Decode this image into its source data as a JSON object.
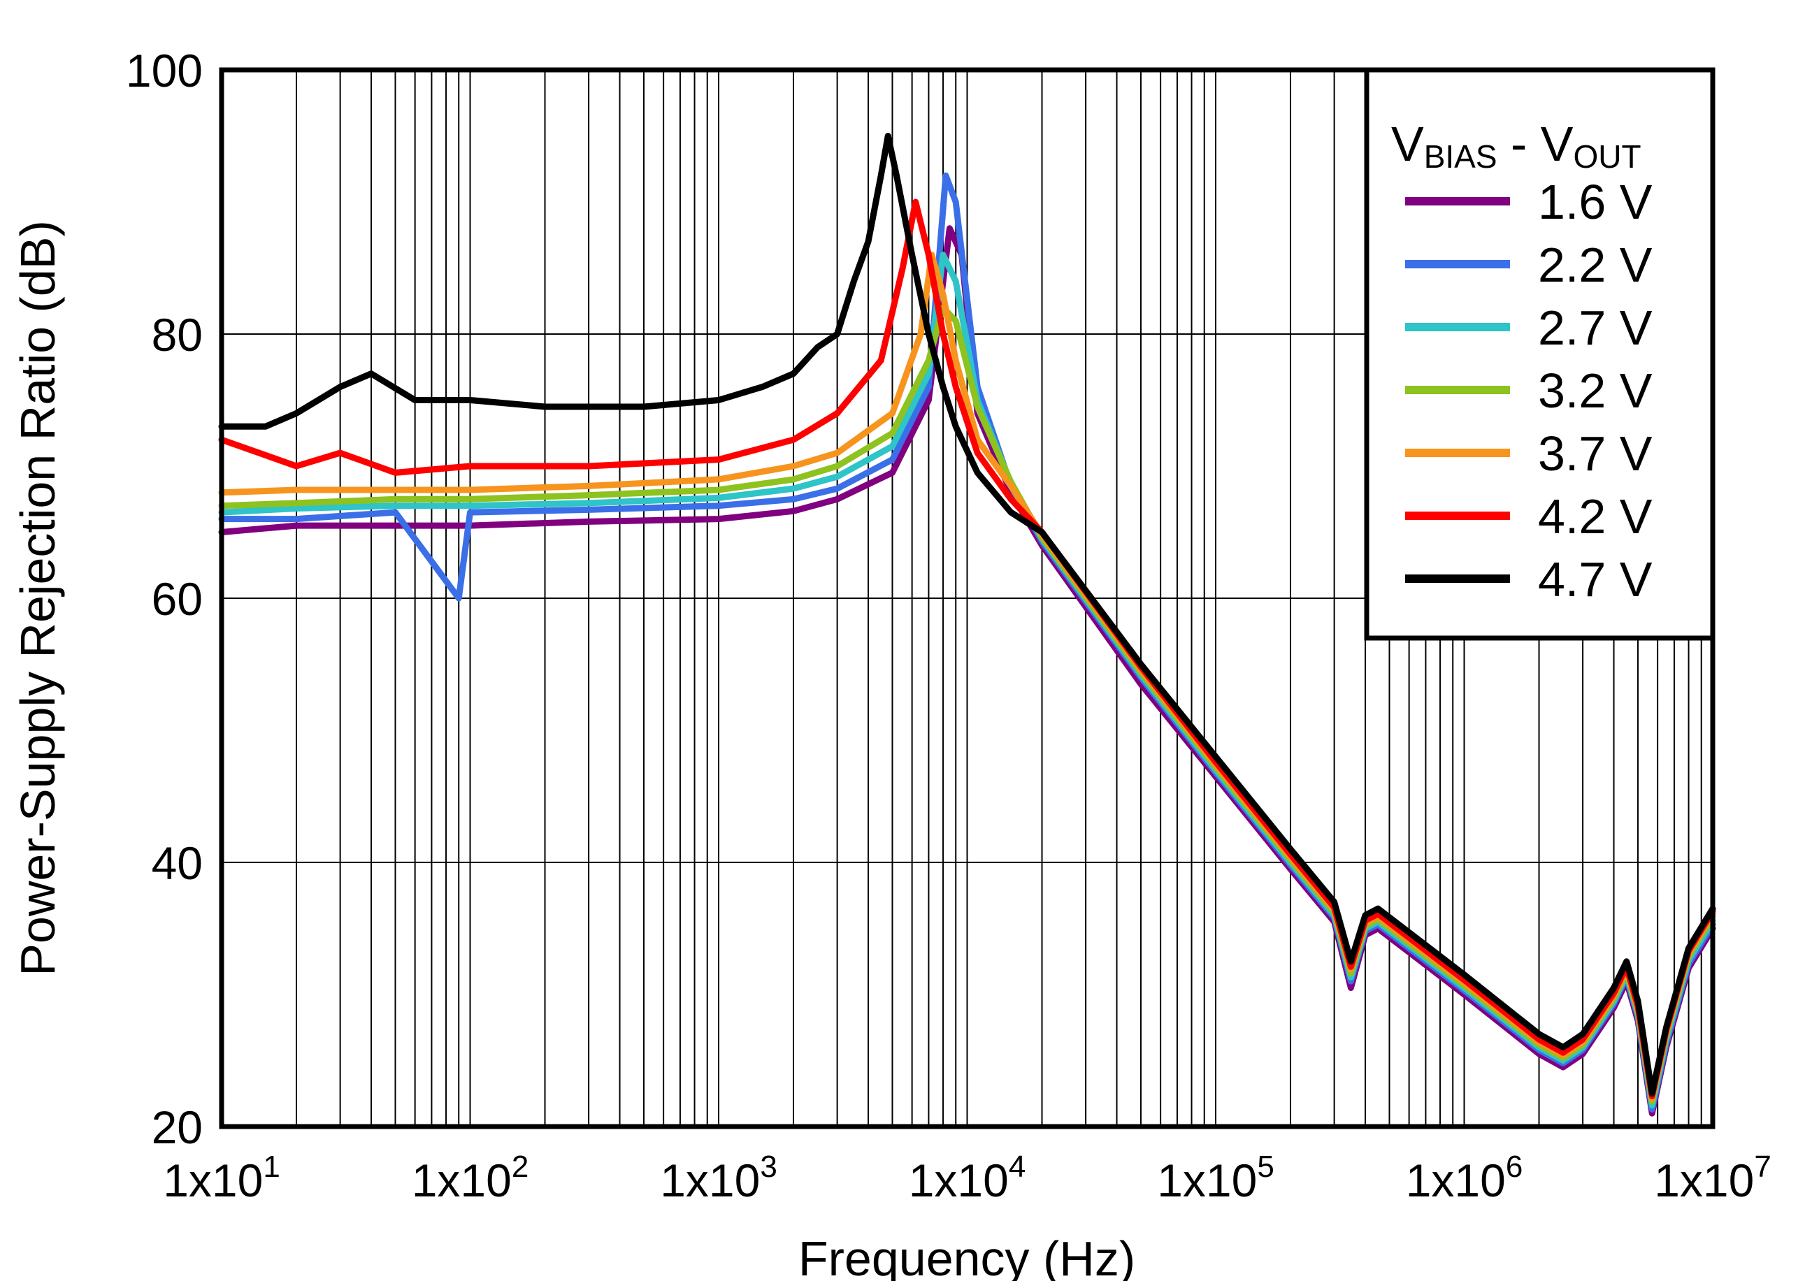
{
  "chart_data": {
    "type": "line",
    "title": "",
    "xlabel": "Frequency (Hz)",
    "ylabel": "Power-Supply Rejection Ratio (dB)",
    "xscale": "log",
    "xlim": [
      10,
      10000000
    ],
    "ylim": [
      20,
      100
    ],
    "grid": true,
    "x_tick_values": [
      10,
      100,
      1000,
      10000,
      100000,
      1000000,
      10000000
    ],
    "x_tick_labels": [
      {
        "mantissa": "1x10",
        "exp": "1"
      },
      {
        "mantissa": "1x10",
        "exp": "2"
      },
      {
        "mantissa": "1x10",
        "exp": "3"
      },
      {
        "mantissa": "1x10",
        "exp": "4"
      },
      {
        "mantissa": "1x10",
        "exp": "5"
      },
      {
        "mantissa": "1x10",
        "exp": "6"
      },
      {
        "mantissa": "1x10",
        "exp": "7"
      }
    ],
    "y_ticks": [
      20,
      40,
      60,
      80,
      100
    ],
    "legend": {
      "position": "top-right",
      "title": {
        "v1": "V",
        "sub1": "BIAS",
        "sep": " - ",
        "v2": "V",
        "sub2": "OUT"
      }
    },
    "series": [
      {
        "name": "1.6 V",
        "color": "#800080",
        "x": [
          10,
          20,
          50,
          100,
          300,
          1000,
          2000,
          3000,
          5000,
          7000,
          8500,
          9500,
          11000,
          15000,
          20000,
          50000,
          100000,
          200000,
          300000,
          350000,
          400000,
          450000,
          1000000,
          2000000,
          2500000,
          3000000,
          4000000,
          4500000,
          5000000,
          5700000,
          6500000,
          8000000,
          10000000
        ],
        "y": [
          65,
          65.5,
          65.5,
          65.5,
          65.8,
          66,
          66.6,
          67.5,
          69.5,
          75,
          88,
          86,
          74,
          68,
          64,
          53.5,
          46.5,
          39.5,
          35.5,
          30.5,
          34.5,
          35,
          30,
          25.5,
          24.5,
          25.5,
          29,
          31,
          28,
          21,
          26,
          32,
          35
        ]
      },
      {
        "name": "2.2 V",
        "color": "#3A6FE8",
        "x": [
          10,
          20,
          50,
          90,
          100,
          300,
          1000,
          2000,
          3000,
          5000,
          7000,
          8200,
          9000,
          11000,
          15000,
          20000,
          50000,
          100000,
          200000,
          300000,
          350000,
          400000,
          450000,
          1000000,
          2000000,
          2500000,
          3000000,
          4000000,
          4500000,
          5000000,
          5700000,
          6500000,
          8000000,
          10000000
        ],
        "y": [
          66,
          66,
          66.5,
          60,
          66.5,
          66.7,
          67,
          67.5,
          68.3,
          70.5,
          76,
          92,
          90,
          76,
          68.5,
          64.3,
          54,
          46.8,
          39.8,
          35.8,
          31,
          34.8,
          35.3,
          30.3,
          25.8,
          24.8,
          25.8,
          29.3,
          31.3,
          28.3,
          21.3,
          26.3,
          32.3,
          35.3
        ]
      },
      {
        "name": "2.7 V",
        "color": "#2EC4C8",
        "x": [
          10,
          20,
          50,
          100,
          300,
          1000,
          2000,
          3000,
          5000,
          7000,
          8000,
          9000,
          11000,
          15000,
          20000,
          50000,
          100000,
          200000,
          300000,
          350000,
          400000,
          450000,
          1000000,
          2000000,
          2500000,
          3000000,
          4000000,
          4500000,
          5000000,
          5700000,
          6500000,
          8000000,
          10000000
        ],
        "y": [
          66.5,
          66.8,
          67,
          67,
          67.2,
          67.6,
          68.3,
          69.2,
          71.5,
          77,
          86,
          84,
          75,
          68.7,
          64.5,
          54.2,
          47,
          40,
          36,
          31.3,
          35,
          35.5,
          30.5,
          26,
          25,
          26,
          29.5,
          31.5,
          28.5,
          21.6,
          26.6,
          32.6,
          35.6
        ]
      },
      {
        "name": "3.2 V",
        "color": "#8DC21F",
        "x": [
          10,
          20,
          50,
          100,
          300,
          1000,
          2000,
          3000,
          5000,
          7000,
          8000,
          9000,
          11000,
          15000,
          20000,
          50000,
          100000,
          200000,
          300000,
          350000,
          400000,
          450000,
          1000000,
          2000000,
          2500000,
          3000000,
          4000000,
          4500000,
          5000000,
          5700000,
          6500000,
          8000000,
          10000000
        ],
        "y": [
          67,
          67.2,
          67.5,
          67.5,
          67.8,
          68.2,
          69,
          70,
          72.5,
          78,
          82,
          81,
          74.5,
          68.8,
          64.6,
          54.4,
          47.2,
          40.2,
          36.2,
          31.6,
          35.2,
          35.7,
          30.7,
          26.2,
          25.2,
          26.2,
          29.7,
          31.7,
          28.7,
          21.9,
          26.9,
          32.9,
          35.9
        ]
      },
      {
        "name": "3.7 V",
        "color": "#F7941D",
        "x": [
          10,
          20,
          50,
          100,
          300,
          1000,
          2000,
          3000,
          5000,
          6500,
          7200,
          8000,
          9000,
          11000,
          15000,
          20000,
          50000,
          100000,
          200000,
          300000,
          350000,
          400000,
          450000,
          1000000,
          2000000,
          2500000,
          3000000,
          4000000,
          4500000,
          5000000,
          5700000,
          6500000,
          8000000,
          10000000
        ],
        "y": [
          68,
          68.2,
          68.2,
          68.2,
          68.5,
          69,
          70,
          71,
          74,
          80,
          86,
          83,
          78,
          72,
          68.5,
          64.8,
          54.6,
          47.4,
          40.4,
          36.4,
          31.9,
          35.4,
          35.9,
          30.9,
          26.4,
          25.4,
          26.4,
          29.9,
          31.9,
          28.9,
          22.1,
          27.1,
          33.1,
          36.1
        ]
      },
      {
        "name": "4.2 V",
        "color": "#FF0000",
        "x": [
          10,
          20,
          30,
          50,
          100,
          300,
          1000,
          2000,
          3000,
          4500,
          5500,
          6200,
          7000,
          8000,
          9000,
          11000,
          15000,
          20000,
          50000,
          100000,
          200000,
          300000,
          350000,
          400000,
          450000,
          1000000,
          2000000,
          2500000,
          3000000,
          4000000,
          4500000,
          5000000,
          5700000,
          6500000,
          8000000,
          10000000
        ],
        "y": [
          72,
          70,
          71,
          69.5,
          70,
          70,
          70.5,
          72,
          74,
          78,
          85,
          90,
          86,
          80,
          76,
          71,
          67.5,
          65,
          54.8,
          47.6,
          40.6,
          36.6,
          32.1,
          35.6,
          36.1,
          31.1,
          26.6,
          25.6,
          26.6,
          30.1,
          32.1,
          29.1,
          22.3,
          27.3,
          33.3,
          36.3
        ]
      },
      {
        "name": "4.7 V",
        "color": "#000000",
        "x": [
          10,
          15,
          20,
          30,
          40,
          60,
          100,
          200,
          300,
          500,
          1000,
          1500,
          2000,
          2500,
          3000,
          3500,
          4000,
          4500,
          4800,
          5200,
          6000,
          7000,
          8000,
          9000,
          11000,
          15000,
          20000,
          50000,
          100000,
          200000,
          300000,
          350000,
          400000,
          450000,
          1000000,
          2000000,
          2500000,
          3000000,
          4000000,
          4500000,
          5000000,
          5700000,
          6500000,
          8000000,
          10000000
        ],
        "y": [
          73,
          73,
          74,
          76,
          77,
          75,
          75,
          74.5,
          74.5,
          74.5,
          75,
          76,
          77,
          79,
          80,
          84,
          87,
          92,
          95,
          92,
          86,
          80,
          76,
          73,
          69.5,
          66.5,
          65,
          55,
          48,
          41,
          37,
          32.5,
          36,
          36.5,
          31.5,
          27,
          26,
          27,
          30.5,
          32.5,
          29.5,
          22.5,
          27.5,
          33.5,
          36.5
        ]
      }
    ]
  }
}
